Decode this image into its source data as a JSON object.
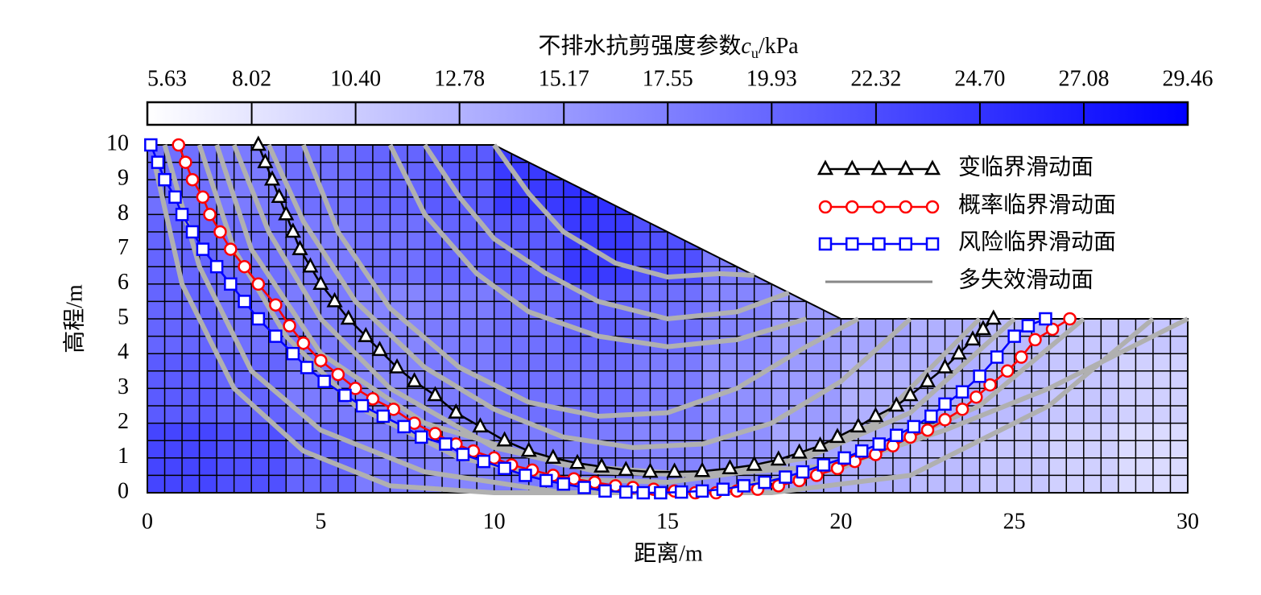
{
  "chart_data": {
    "type": "line",
    "xlabel": "距离/m",
    "ylabel": "高程/m",
    "xlim": [
      0,
      30
    ],
    "xticks": [
      0,
      5,
      10,
      15,
      20,
      25,
      30
    ],
    "ylim": [
      0,
      10
    ],
    "yticks": [
      0,
      1,
      2,
      3,
      4,
      5,
      6,
      7,
      8,
      9,
      10
    ],
    "legend": "upper right",
    "colorbar": {
      "label": "不排水抗剪强度参数",
      "label_symbol": "c",
      "label_sub": "u",
      "label_unit": "/kPa",
      "lim": [
        5.63,
        29.46
      ],
      "ticks": [
        5.63,
        8.02,
        {
          "value": 10.4,
          "label": "10.40"
        },
        12.78,
        15.17,
        17.55,
        19.93,
        22.32,
        {
          "value": 24.7,
          "label": "24.70"
        },
        27.08,
        29.46
      ],
      "colors": [
        "#ffffff",
        "#0000ff"
      ]
    },
    "field": {
      "values": [
        [
          19,
          18,
          19,
          20,
          21,
          24,
          25,
          null,
          null,
          null,
          null,
          null,
          null,
          null,
          null
        ],
        [
          20,
          19,
          18,
          19,
          20,
          21,
          24,
          22,
          18,
          null,
          null,
          null,
          null,
          null,
          null
        ],
        [
          20,
          19,
          18,
          17,
          18,
          19,
          20,
          19,
          17,
          15,
          14,
          13,
          12,
          11,
          11
        ],
        [
          21,
          20,
          18,
          17,
          18,
          19,
          19,
          18,
          16,
          15,
          13,
          13,
          12,
          11,
          10
        ],
        [
          23,
          22,
          20,
          18,
          17,
          18,
          18,
          17,
          16,
          14,
          13,
          12,
          11,
          10,
          9
        ]
      ]
    },
    "series": [
      {
        "name": "变临界滑动面",
        "color": "#000000",
        "marker": "triangle",
        "x": [
          3.2,
          3.4,
          3.6,
          3.8,
          4,
          4.2,
          4.4,
          4.7,
          5,
          5.4,
          5.8,
          6.3,
          6.7,
          7.2,
          7.7,
          8.3,
          8.9,
          9.6,
          10.3,
          11,
          11.7,
          12.4,
          13.1,
          13.8,
          14.5,
          15.2,
          16,
          16.8,
          17.5,
          18.2,
          18.8,
          19.4,
          19.9,
          20.5,
          21,
          21.6,
          22,
          22.5,
          23,
          23.4,
          23.8,
          24.1,
          24.4
        ],
        "y": [
          10,
          9.5,
          9,
          8.5,
          8,
          7.5,
          7,
          6.5,
          6,
          5.5,
          5,
          4.5,
          4.1,
          3.6,
          3.2,
          2.8,
          2.3,
          1.9,
          1.5,
          1.2,
          1,
          0.85,
          0.75,
          0.65,
          0.6,
          0.6,
          0.62,
          0.7,
          0.8,
          0.95,
          1.15,
          1.35,
          1.6,
          1.9,
          2.2,
          2.5,
          2.8,
          3.2,
          3.6,
          4,
          4.4,
          4.7,
          5
        ]
      },
      {
        "name": "概率临界滑动面",
        "color": "#ff0000",
        "marker": "circle",
        "x": [
          0.9,
          1.1,
          1.3,
          1.6,
          1.8,
          2.1,
          2.4,
          2.8,
          3.2,
          3.7,
          4.1,
          4.5,
          5,
          5.5,
          6,
          6.5,
          7.1,
          7.7,
          8.3,
          8.9,
          9.4,
          10,
          10.5,
          11.1,
          11.7,
          12.3,
          12.9,
          13.5,
          14,
          14.6,
          15.2,
          15.8,
          16.4,
          17,
          17.6,
          18.2,
          18.8,
          19.3,
          19.9,
          20.4,
          21,
          21.5,
          22,
          22.5,
          23,
          23.5,
          23.9,
          24.3,
          24.8,
          25.2,
          25.6,
          26.1,
          26.6
        ],
        "y": [
          10,
          9.5,
          9,
          8.5,
          8,
          7.5,
          7,
          6.5,
          6,
          5.4,
          4.8,
          4.3,
          3.8,
          3.4,
          3,
          2.7,
          2.4,
          2,
          1.7,
          1.4,
          1.2,
          1,
          0.8,
          0.65,
          0.5,
          0.4,
          0.3,
          0.2,
          0.15,
          0.1,
          0.05,
          0,
          0,
          0.05,
          0.1,
          0.2,
          0.35,
          0.5,
          0.7,
          0.9,
          1.1,
          1.35,
          1.6,
          1.8,
          2.1,
          2.4,
          2.75,
          3.1,
          3.5,
          3.9,
          4.4,
          4.7,
          5
        ]
      },
      {
        "name": "风险临界滑动面",
        "color": "#0000ff",
        "marker": "square",
        "x": [
          0.1,
          0.3,
          0.5,
          0.8,
          1,
          1.3,
          1.6,
          2,
          2.4,
          2.8,
          3.2,
          3.7,
          4.2,
          4.6,
          5.1,
          5.7,
          6.2,
          6.8,
          7.4,
          7.9,
          8.6,
          9.1,
          9.7,
          10.3,
          10.9,
          11.5,
          12,
          12.6,
          13.2,
          13.8,
          14.3,
          14.8,
          15.4,
          16,
          16.6,
          17.2,
          17.8,
          18.4,
          18.9,
          19.5,
          20.1,
          20.6,
          21.1,
          21.6,
          22.1,
          22.6,
          23,
          23.5,
          24,
          24.5,
          25,
          25.4,
          25.9
        ],
        "y": [
          10,
          9.5,
          9,
          8.5,
          8,
          7.5,
          7,
          6.5,
          6,
          5.5,
          5,
          4.5,
          4,
          3.6,
          3.2,
          2.8,
          2.5,
          2.2,
          1.9,
          1.6,
          1.4,
          1.1,
          0.9,
          0.7,
          0.5,
          0.35,
          0.25,
          0.15,
          0.05,
          0.02,
          0,
          0,
          0.02,
          0.05,
          0.1,
          0.2,
          0.3,
          0.45,
          0.6,
          0.8,
          1,
          1.2,
          1.4,
          1.65,
          1.9,
          2.2,
          2.55,
          2.9,
          3.35,
          3.9,
          4.5,
          4.8,
          5
        ]
      }
    ],
    "failure_surfaces": {
      "name": "多失效滑动面",
      "color": "#b0b0b0",
      "curves": [
        {
          "x": [
            1.5,
            2.5,
            4,
            6,
            9,
            12,
            15,
            18,
            21,
            24
          ],
          "y": [
            10,
            7,
            4.5,
            2.5,
            1,
            0.4,
            0.3,
            0.7,
            2,
            5
          ]
        },
        {
          "x": [
            2.5,
            3.5,
            5,
            7,
            10,
            13,
            16,
            19,
            22,
            25
          ],
          "y": [
            10,
            7.5,
            5,
            3,
            1.3,
            0.6,
            0.5,
            1,
            2.3,
            5
          ]
        },
        {
          "x": [
            0.5,
            1.5,
            3,
            5,
            8,
            12,
            16,
            20,
            24,
            27
          ],
          "y": [
            10,
            6.5,
            3.5,
            1.8,
            0.6,
            0,
            0,
            0.7,
            2.5,
            5
          ]
        },
        {
          "x": [
            4.5,
            5.5,
            7,
            9,
            11,
            13,
            15,
            17,
            19,
            20.5
          ],
          "y": [
            10,
            7.5,
            5.3,
            3.6,
            2.6,
            2.2,
            2.3,
            3,
            4.2,
            5
          ]
        },
        {
          "x": [
            7,
            8,
            9.5,
            11,
            13,
            15,
            17,
            19
          ],
          "y": [
            10,
            8,
            6.3,
            5.2,
            4.5,
            4.2,
            4.4,
            5
          ]
        },
        {
          "x": [
            0.2,
            1,
            2.5,
            4.5,
            7,
            10,
            14,
            18,
            22,
            26,
            29
          ],
          "y": [
            9.5,
            6,
            3,
            1.2,
            0.2,
            0,
            0,
            0,
            0.5,
            2.5,
            5
          ]
        },
        {
          "x": [
            8,
            9,
            10,
            11.5,
            13,
            15,
            17,
            18.5
          ],
          "y": [
            10,
            8.5,
            7.3,
            6.3,
            5.5,
            5,
            5.2,
            5.75
          ]
        },
        {
          "x": [
            10,
            11,
            12,
            13.5,
            15,
            16.5,
            17.5
          ],
          "y": [
            10,
            8.6,
            7.5,
            6.6,
            6.2,
            6.3,
            6.25
          ]
        },
        {
          "x": [
            2,
            3,
            5,
            8,
            12,
            16,
            20,
            23,
            26,
            30
          ],
          "y": [
            10,
            7,
            4,
            2,
            0.8,
            0.5,
            0.8,
            1.8,
            3,
            5
          ]
        },
        {
          "x": [
            3.5,
            4.5,
            6,
            8,
            10,
            12,
            14,
            16,
            18,
            20,
            22
          ],
          "y": [
            10,
            7.8,
            5.5,
            3.6,
            2.4,
            1.6,
            1.3,
            1.4,
            2,
            3.2,
            5
          ]
        }
      ]
    }
  }
}
